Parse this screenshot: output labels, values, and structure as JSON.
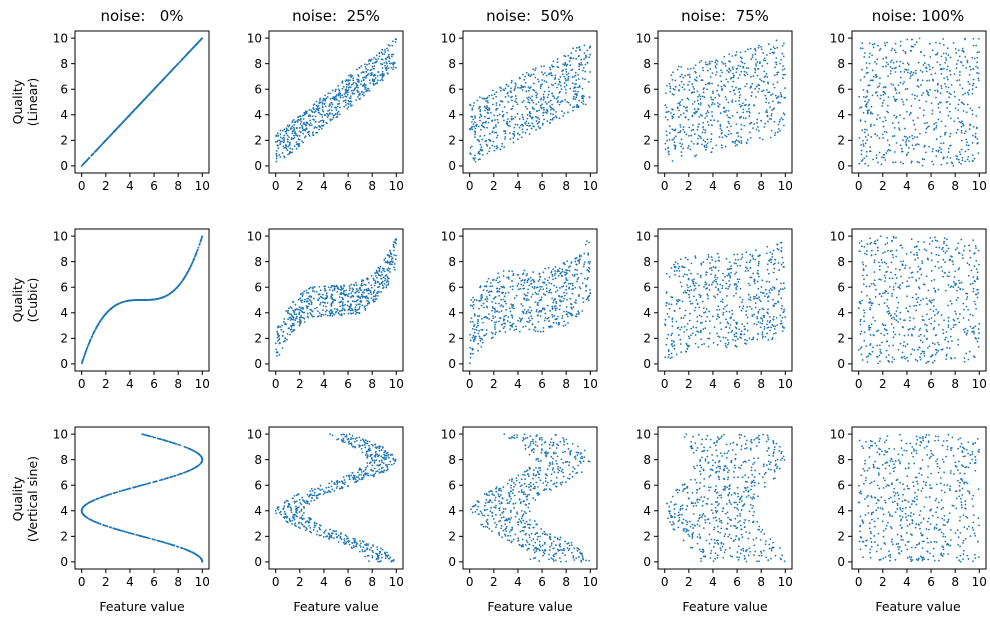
{
  "figure": {
    "column_titles": [
      "noise:   0%",
      "noise:  25%",
      "noise:  50%",
      "noise:  75%",
      "noise: 100%"
    ],
    "row_labels": [
      {
        "line1": "Quality",
        "line2": "(Linear)"
      },
      {
        "line1": "Quality",
        "line2": "(Cubic)"
      },
      {
        "line1": "Quality",
        "line2": "(Vertical sine)"
      }
    ],
    "xlabel": "Feature value",
    "point_color": "#1f77b4"
  },
  "chart_data": {
    "type": "scatter",
    "layout": "3x5 grid of scatter panels",
    "rows": [
      "Linear",
      "Cubic",
      "Vertical sine"
    ],
    "noise_levels": [
      0,
      0.25,
      0.5,
      0.75,
      1.0
    ],
    "xlim": [
      0,
      10
    ],
    "ylim": [
      0,
      10
    ],
    "xticks": [
      0,
      2,
      4,
      6,
      8,
      10
    ],
    "yticks": [
      0,
      2,
      4,
      6,
      8,
      10
    ],
    "points_per_panel": 600,
    "relations": {
      "Linear": "y = x",
      "Cubic": "y = 5 + 5*((x-5)/5)^3",
      "Vertical sine": "x = 5 + 5*sin(2.5*pi*y/10 + pi/2) over y in [0,10]"
    },
    "grid": false
  }
}
